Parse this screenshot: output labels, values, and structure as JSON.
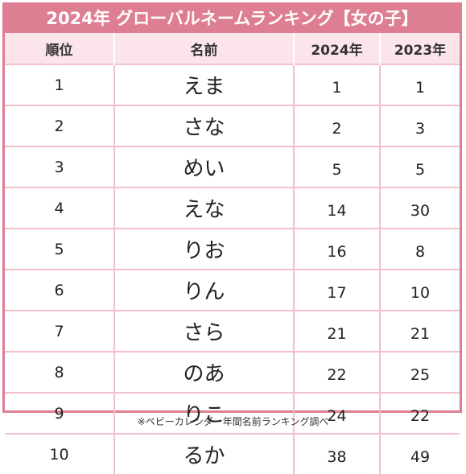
{
  "title": "2024年 グローバルネームランキング【女の子】",
  "headers": {
    "rank": "順位",
    "name": "名前",
    "y2024": "2024年",
    "y2023": "2023年"
  },
  "rows": [
    {
      "rank": "1",
      "name": "えま",
      "y2024": "1",
      "y2023": "1"
    },
    {
      "rank": "2",
      "name": "さな",
      "y2024": "2",
      "y2023": "3"
    },
    {
      "rank": "3",
      "name": "めい",
      "y2024": "5",
      "y2023": "5"
    },
    {
      "rank": "4",
      "name": "えな",
      "y2024": "14",
      "y2023": "30"
    },
    {
      "rank": "5",
      "name": "りお",
      "y2024": "16",
      "y2023": "8"
    },
    {
      "rank": "6",
      "name": "りん",
      "y2024": "17",
      "y2023": "10"
    },
    {
      "rank": "7",
      "name": "さら",
      "y2024": "21",
      "y2023": "21"
    },
    {
      "rank": "8",
      "name": "のあ",
      "y2024": "22",
      "y2023": "25"
    },
    {
      "rank": "9",
      "name": "りこ",
      "y2024": "24",
      "y2023": "22"
    },
    {
      "rank": "10",
      "name": "るか",
      "y2024": "38",
      "y2023": "49"
    }
  ],
  "footnote": "※ベビーカレンダー年間名前ランキング調べ",
  "colors": {
    "accent": "#de7e93",
    "header_bg": "#fbe5ea",
    "grid": "#f3bfcb"
  }
}
